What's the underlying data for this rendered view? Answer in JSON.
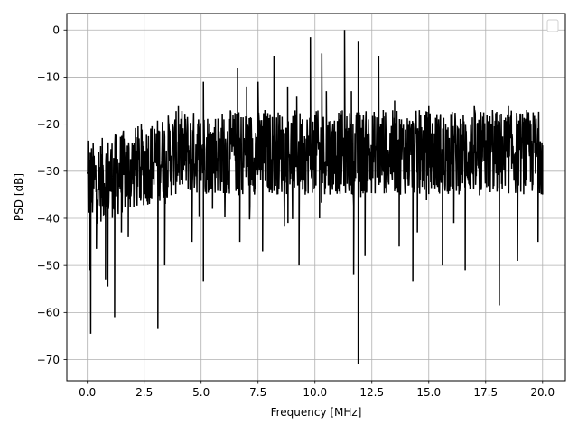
{
  "chart_data": {
    "type": "line",
    "title": "",
    "xlabel": "Frequency [MHz]",
    "ylabel": "PSD [dB]",
    "xlim": [
      -0.9,
      21.0
    ],
    "ylim": [
      -74.5,
      3.5
    ],
    "xticks": [
      0.0,
      2.5,
      5.0,
      7.5,
      10.0,
      12.5,
      15.0,
      17.5,
      20.0
    ],
    "xtick_labels": [
      "0.0",
      "2.5",
      "5.0",
      "7.5",
      "10.0",
      "12.5",
      "15.0",
      "17.5",
      "20.0"
    ],
    "yticks": [
      0,
      -10,
      -20,
      -30,
      -40,
      -50,
      -60,
      -70
    ],
    "ytick_labels": [
      "0",
      "−10",
      "−20",
      "−30",
      "−40",
      "−50",
      "−60",
      "−70"
    ],
    "grid": true,
    "legend": "upper-right, empty",
    "series": [
      {
        "color": "#000000",
        "x_range": [
          0.0,
          20.0
        ],
        "typical_band": [
          -38,
          -20
        ],
        "note_values_estimated": true,
        "notable_points": [
          {
            "x": 0.02,
            "y": -23.5
          },
          {
            "x": 0.1,
            "y": -51
          },
          {
            "x": 0.15,
            "y": -64.5
          },
          {
            "x": 0.4,
            "y": -46.5
          },
          {
            "x": 0.8,
            "y": -53
          },
          {
            "x": 0.9,
            "y": -54.5
          },
          {
            "x": 1.2,
            "y": -61
          },
          {
            "x": 1.5,
            "y": -43
          },
          {
            "x": 1.8,
            "y": -44
          },
          {
            "x": 2.3,
            "y": -35
          },
          {
            "x": 3.1,
            "y": -63.5
          },
          {
            "x": 3.4,
            "y": -50
          },
          {
            "x": 3.6,
            "y": -21
          },
          {
            "x": 4.0,
            "y": -16
          },
          {
            "x": 4.6,
            "y": -45
          },
          {
            "x": 5.1,
            "y": -11
          },
          {
            "x": 5.1,
            "y": -53.5
          },
          {
            "x": 5.5,
            "y": -38
          },
          {
            "x": 6.0,
            "y": -19
          },
          {
            "x": 6.6,
            "y": -8
          },
          {
            "x": 6.7,
            "y": -45
          },
          {
            "x": 7.0,
            "y": -12
          },
          {
            "x": 7.5,
            "y": -11
          },
          {
            "x": 7.7,
            "y": -47
          },
          {
            "x": 7.8,
            "y": -17
          },
          {
            "x": 8.2,
            "y": -5.5
          },
          {
            "x": 8.8,
            "y": -12
          },
          {
            "x": 9.2,
            "y": -14
          },
          {
            "x": 9.3,
            "y": -50
          },
          {
            "x": 9.8,
            "y": -1.5
          },
          {
            "x": 10.0,
            "y": -18
          },
          {
            "x": 10.2,
            "y": -40
          },
          {
            "x": 10.3,
            "y": -5
          },
          {
            "x": 10.5,
            "y": -13
          },
          {
            "x": 10.8,
            "y": -22
          },
          {
            "x": 11.3,
            "y": 0
          },
          {
            "x": 11.6,
            "y": -13
          },
          {
            "x": 11.7,
            "y": -52
          },
          {
            "x": 11.9,
            "y": -2.5
          },
          {
            "x": 11.9,
            "y": -71
          },
          {
            "x": 12.2,
            "y": -48
          },
          {
            "x": 12.8,
            "y": -5.5
          },
          {
            "x": 13.0,
            "y": -17
          },
          {
            "x": 13.5,
            "y": -15
          },
          {
            "x": 13.7,
            "y": -46
          },
          {
            "x": 14.3,
            "y": -53.5
          },
          {
            "x": 14.5,
            "y": -43
          },
          {
            "x": 15.0,
            "y": -16
          },
          {
            "x": 15.6,
            "y": -50
          },
          {
            "x": 16.1,
            "y": -41
          },
          {
            "x": 16.6,
            "y": -51
          },
          {
            "x": 17.0,
            "y": -16
          },
          {
            "x": 17.3,
            "y": -34
          },
          {
            "x": 17.8,
            "y": -17
          },
          {
            "x": 18.1,
            "y": -58.5
          },
          {
            "x": 18.5,
            "y": -16
          },
          {
            "x": 18.9,
            "y": -49
          },
          {
            "x": 19.3,
            "y": -17
          },
          {
            "x": 19.8,
            "y": -45
          },
          {
            "x": 20.0,
            "y": -24.5
          }
        ]
      }
    ]
  }
}
